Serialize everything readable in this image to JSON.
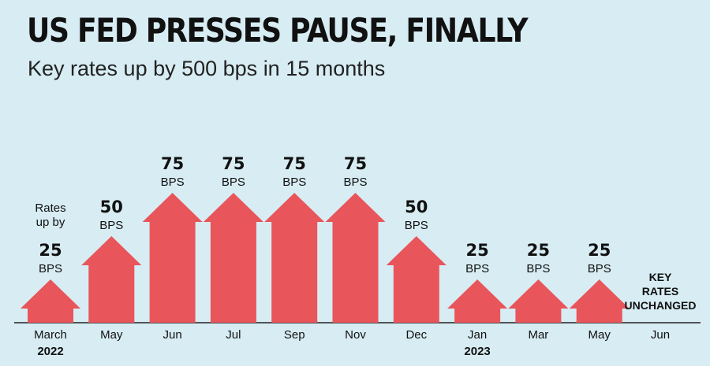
{
  "title": "US FED PRESSES PAUSE, FINALLY",
  "subtitle": "Key rates up by 500 bps in 15 months",
  "colors": {
    "background": "#d7ecf3",
    "arrow": "#e8555a",
    "text": "#111111"
  },
  "chart_data": {
    "type": "bar",
    "categories": [
      "March",
      "May",
      "Jun",
      "Jul",
      "Sep",
      "Nov",
      "Dec",
      "Jan",
      "Mar",
      "May",
      "Jun"
    ],
    "years": [
      "2022",
      "",
      "",
      "",
      "",
      "",
      "",
      "2023",
      "",
      "",
      ""
    ],
    "values": [
      25,
      50,
      75,
      75,
      75,
      75,
      50,
      25,
      25,
      25,
      0
    ],
    "unit": "BPS",
    "first_label_prefix": [
      "Rates",
      "up by"
    ],
    "unchanged_label": [
      "KEY",
      "RATES",
      "UNCHANGED"
    ],
    "mark": "arrow"
  }
}
